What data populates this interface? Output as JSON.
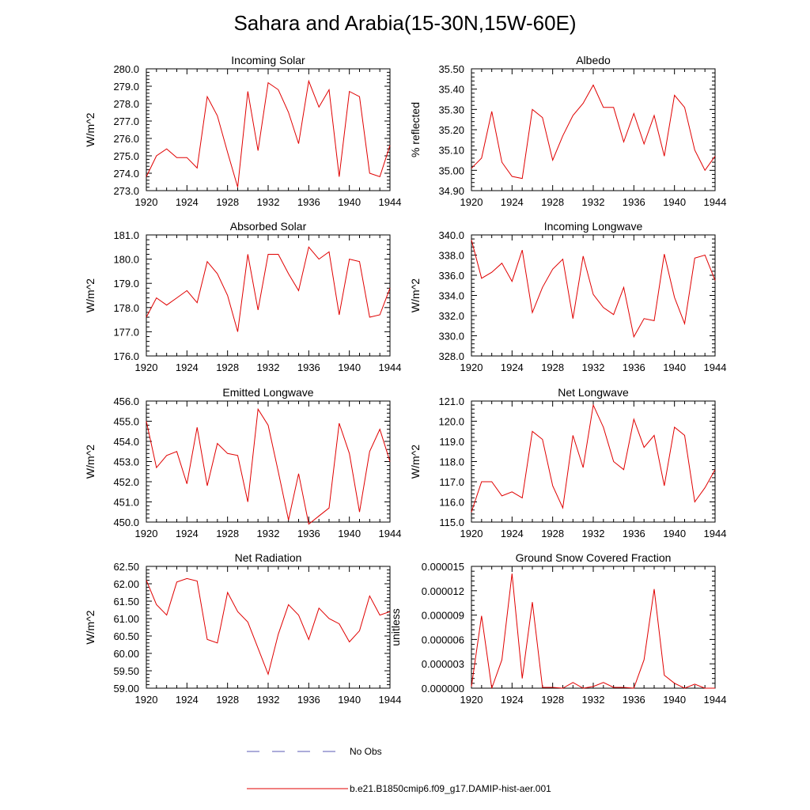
{
  "title": "Sahara and Arabia(15-30N,15W-60E)",
  "legend": [
    {
      "label": "No Obs",
      "color": "#5a5ab4",
      "dash": "dashed"
    },
    {
      "label": "b.e21.B1850cmip6.f09_g17.DAMIP-hist-aer.001",
      "color": "#e00000",
      "dash": "solid"
    }
  ],
  "chart_data": [
    {
      "type": "line",
      "title": "Incoming Solar",
      "xlabel": "",
      "ylabel": "W/m^2",
      "xlim": [
        1920,
        1944
      ],
      "ylim": [
        273.0,
        280.0
      ],
      "xticks": [
        "1920",
        "1924",
        "1928",
        "1932",
        "1936",
        "1940",
        "1944"
      ],
      "yticks": [
        "273.0",
        "274.0",
        "275.0",
        "276.0",
        "277.0",
        "278.0",
        "279.0",
        "280.0"
      ],
      "series": [
        {
          "color": "#e00000",
          "x": [
            1920,
            1921,
            1922,
            1923,
            1924,
            1925,
            1926,
            1927,
            1928,
            1929,
            1930,
            1931,
            1932,
            1933,
            1934,
            1935,
            1936,
            1937,
            1938,
            1939,
            1940,
            1941,
            1942,
            1943,
            1944
          ],
          "values": [
            273.8,
            275.0,
            275.4,
            274.9,
            274.9,
            274.3,
            278.4,
            277.3,
            275.2,
            273.2,
            278.7,
            275.3,
            279.2,
            278.8,
            277.5,
            275.7,
            279.3,
            277.8,
            278.8,
            273.8,
            278.7,
            278.4,
            274.0,
            273.8,
            275.6
          ]
        }
      ]
    },
    {
      "type": "line",
      "title": "Albedo",
      "xlabel": "",
      "ylabel": "% reflected",
      "xlim": [
        1920,
        1944
      ],
      "ylim": [
        34.9,
        35.5
      ],
      "xticks": [
        "1920",
        "1924",
        "1928",
        "1932",
        "1936",
        "1940",
        "1944"
      ],
      "yticks": [
        "34.90",
        "35.00",
        "35.10",
        "35.20",
        "35.30",
        "35.40",
        "35.50"
      ],
      "series": [
        {
          "color": "#e00000",
          "x": [
            1920,
            1921,
            1922,
            1923,
            1924,
            1925,
            1926,
            1927,
            1928,
            1929,
            1930,
            1931,
            1932,
            1933,
            1934,
            1935,
            1936,
            1937,
            1938,
            1939,
            1940,
            1941,
            1942,
            1943,
            1944
          ],
          "values": [
            35.01,
            35.06,
            35.29,
            35.04,
            34.97,
            34.96,
            35.3,
            35.26,
            35.05,
            35.17,
            35.27,
            35.33,
            35.42,
            35.31,
            35.31,
            35.14,
            35.28,
            35.13,
            35.27,
            35.07,
            35.37,
            35.31,
            35.1,
            35.0,
            35.07
          ]
        }
      ]
    },
    {
      "type": "line",
      "title": "Absorbed Solar",
      "xlabel": "",
      "ylabel": "W/m^2",
      "xlim": [
        1920,
        1944
      ],
      "ylim": [
        176.0,
        181.0
      ],
      "xticks": [
        "1920",
        "1924",
        "1928",
        "1932",
        "1936",
        "1940",
        "1944"
      ],
      "yticks": [
        "176.0",
        "177.0",
        "178.0",
        "179.0",
        "180.0",
        "181.0"
      ],
      "series": [
        {
          "color": "#e00000",
          "x": [
            1920,
            1921,
            1922,
            1923,
            1924,
            1925,
            1926,
            1927,
            1928,
            1929,
            1930,
            1931,
            1932,
            1933,
            1934,
            1935,
            1936,
            1937,
            1938,
            1939,
            1940,
            1941,
            1942,
            1943,
            1944
          ],
          "values": [
            177.6,
            178.4,
            178.1,
            178.4,
            178.7,
            178.2,
            179.9,
            179.4,
            178.5,
            177.0,
            180.2,
            177.9,
            180.2,
            180.2,
            179.4,
            178.7,
            180.5,
            180.0,
            180.3,
            177.7,
            180.0,
            179.9,
            177.6,
            177.7,
            178.8
          ]
        }
      ]
    },
    {
      "type": "line",
      "title": "Incoming Longwave",
      "xlabel": "",
      "ylabel": "W/m^2",
      "xlim": [
        1920,
        1944
      ],
      "ylim": [
        328.0,
        340.0
      ],
      "xticks": [
        "1920",
        "1924",
        "1928",
        "1932",
        "1936",
        "1940",
        "1944"
      ],
      "yticks": [
        "328.0",
        "330.0",
        "332.0",
        "334.0",
        "336.0",
        "338.0",
        "340.0"
      ],
      "series": [
        {
          "color": "#e00000",
          "x": [
            1920,
            1921,
            1922,
            1923,
            1924,
            1925,
            1926,
            1927,
            1928,
            1929,
            1930,
            1931,
            1932,
            1933,
            1934,
            1935,
            1936,
            1937,
            1938,
            1939,
            1940,
            1941,
            1942,
            1943,
            1944
          ],
          "values": [
            339.5,
            335.7,
            336.3,
            337.2,
            335.4,
            338.5,
            332.3,
            334.8,
            336.6,
            337.6,
            331.7,
            337.9,
            334.1,
            332.8,
            332.1,
            334.8,
            329.9,
            331.7,
            331.5,
            338.1,
            333.8,
            331.2,
            337.7,
            338.0,
            335.5
          ]
        }
      ]
    },
    {
      "type": "line",
      "title": "Emitted Longwave",
      "xlabel": "",
      "ylabel": "W/m^2",
      "xlim": [
        1920,
        1944
      ],
      "ylim": [
        450.0,
        456.0
      ],
      "xticks": [
        "1920",
        "1924",
        "1928",
        "1932",
        "1936",
        "1940",
        "1944"
      ],
      "yticks": [
        "450.0",
        "451.0",
        "452.0",
        "453.0",
        "454.0",
        "455.0",
        "456.0"
      ],
      "series": [
        {
          "color": "#e00000",
          "x": [
            1920,
            1921,
            1922,
            1923,
            1924,
            1925,
            1926,
            1927,
            1928,
            1929,
            1930,
            1931,
            1932,
            1933,
            1934,
            1935,
            1936,
            1937,
            1938,
            1939,
            1940,
            1941,
            1942,
            1943,
            1944
          ],
          "values": [
            455.0,
            452.7,
            453.3,
            453.5,
            451.9,
            454.7,
            451.8,
            453.9,
            453.4,
            453.3,
            451.0,
            455.6,
            454.8,
            452.5,
            450.1,
            452.4,
            449.9,
            450.3,
            450.7,
            454.9,
            453.4,
            450.5,
            453.5,
            454.6,
            453.0
          ]
        }
      ]
    },
    {
      "type": "line",
      "title": "Net Longwave",
      "xlabel": "",
      "ylabel": "W/m^2",
      "xlim": [
        1920,
        1944
      ],
      "ylim": [
        115.0,
        121.0
      ],
      "xticks": [
        "1920",
        "1924",
        "1928",
        "1932",
        "1936",
        "1940",
        "1944"
      ],
      "yticks": [
        "115.0",
        "116.0",
        "117.0",
        "118.0",
        "119.0",
        "120.0",
        "121.0"
      ],
      "series": [
        {
          "color": "#e00000",
          "x": [
            1920,
            1921,
            1922,
            1923,
            1924,
            1925,
            1926,
            1927,
            1928,
            1929,
            1930,
            1931,
            1932,
            1933,
            1934,
            1935,
            1936,
            1937,
            1938,
            1939,
            1940,
            1941,
            1942,
            1943,
            1944
          ],
          "values": [
            115.5,
            117.0,
            117.0,
            116.3,
            116.5,
            116.2,
            119.5,
            119.1,
            116.8,
            115.7,
            119.3,
            117.7,
            120.8,
            119.7,
            118.0,
            117.6,
            120.1,
            118.7,
            119.3,
            116.8,
            119.7,
            119.3,
            116.0,
            116.7,
            117.6
          ]
        }
      ]
    },
    {
      "type": "line",
      "title": "Net Radiation",
      "xlabel": "",
      "ylabel": "W/m^2",
      "xlim": [
        1920,
        1944
      ],
      "ylim": [
        59.0,
        62.5
      ],
      "xticks": [
        "1920",
        "1924",
        "1928",
        "1932",
        "1936",
        "1940",
        "1944"
      ],
      "yticks": [
        "59.00",
        "59.50",
        "60.00",
        "60.50",
        "61.00",
        "61.50",
        "62.00",
        "62.50"
      ],
      "series": [
        {
          "color": "#e00000",
          "x": [
            1920,
            1921,
            1922,
            1923,
            1924,
            1925,
            1926,
            1927,
            1928,
            1929,
            1930,
            1931,
            1932,
            1933,
            1934,
            1935,
            1936,
            1937,
            1938,
            1939,
            1940,
            1941,
            1942,
            1943,
            1944
          ],
          "values": [
            62.1,
            61.4,
            61.1,
            62.05,
            62.15,
            62.08,
            60.4,
            60.3,
            61.75,
            61.2,
            60.9,
            60.15,
            59.4,
            60.55,
            61.4,
            61.1,
            60.4,
            61.3,
            61.0,
            60.85,
            60.33,
            60.65,
            61.65,
            61.1,
            61.2
          ]
        }
      ]
    },
    {
      "type": "line",
      "title": "Ground Snow Covered Fraction",
      "xlabel": "",
      "ylabel": "unitless",
      "xlim": [
        1920,
        1944
      ],
      "ylim": [
        0,
        1.5e-05
      ],
      "xticks": [
        "1920",
        "1924",
        "1928",
        "1932",
        "1936",
        "1940",
        "1944"
      ],
      "yticks": [
        "0.000000",
        "0.000003",
        "0.000006",
        "0.000009",
        "0.000012",
        "0.000015"
      ],
      "series": [
        {
          "color": "#e00000",
          "x": [
            1920,
            1921,
            1922,
            1923,
            1924,
            1925,
            1926,
            1927,
            1928,
            1929,
            1930,
            1931,
            1932,
            1933,
            1934,
            1935,
            1936,
            1937,
            1938,
            1939,
            1940,
            1941,
            1942,
            1943,
            1944
          ],
          "values": [
            2e-07,
            8.9e-06,
            0.0,
            3.5e-06,
            1.41e-05,
            1.2e-06,
            1.06e-05,
            1e-07,
            1e-07,
            0.0,
            7e-07,
            0.0,
            2e-07,
            7e-07,
            1e-07,
            1e-07,
            0.0,
            3.5e-06,
            1.22e-05,
            1.6e-06,
            6e-07,
            0.0,
            5e-07,
            0.0,
            0.0
          ]
        }
      ]
    }
  ]
}
